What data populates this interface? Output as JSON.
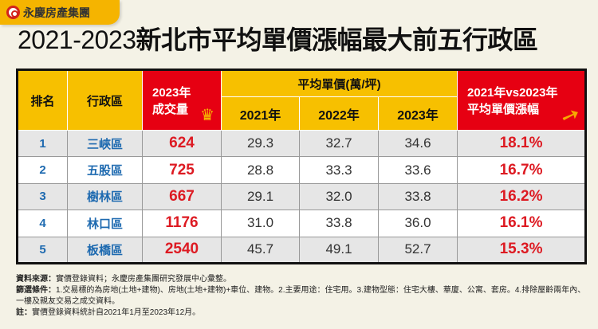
{
  "brand": {
    "name": "永慶房產集團"
  },
  "title": {
    "years": "2021-2023",
    "main": "新北市平均單價漲幅最大前五行政區"
  },
  "colors": {
    "header_yellow": "#f7c000",
    "header_red": "#e60012",
    "district_blue": "#1e6ab0",
    "value_red": "#dd1a22"
  },
  "chart_data": {
    "type": "table",
    "headers": {
      "rank": "排名",
      "district": "行政區",
      "volume": "2023年成交量",
      "volume_l1": "2023年",
      "volume_l2": "成交量",
      "price_group": "平均單價(萬/坪)",
      "y2021": "2021年",
      "y2022": "2022年",
      "y2023": "2023年",
      "growth_l1": "2021年vs2023年",
      "growth_l2": "平均單價漲幅"
    },
    "rows": [
      {
        "rank": "1",
        "district": "三峽區",
        "volume": "624",
        "p2021": "29.3",
        "p2022": "32.7",
        "p2023": "34.6",
        "growth": "18.1%"
      },
      {
        "rank": "2",
        "district": "五股區",
        "volume": "725",
        "p2021": "28.8",
        "p2022": "33.3",
        "p2023": "33.6",
        "growth": "16.7%"
      },
      {
        "rank": "3",
        "district": "樹林區",
        "volume": "667",
        "p2021": "29.1",
        "p2022": "32.0",
        "p2023": "33.8",
        "growth": "16.2%"
      },
      {
        "rank": "4",
        "district": "林口區",
        "volume": "1176",
        "p2021": "31.0",
        "p2022": "33.8",
        "p2023": "36.0",
        "growth": "16.1%"
      },
      {
        "rank": "5",
        "district": "板橋區",
        "volume": "2540",
        "p2021": "45.7",
        "p2022": "49.1",
        "p2023": "52.7",
        "growth": "15.3%"
      }
    ]
  },
  "notes": {
    "source_label": "資料來源：",
    "source": "實價登錄資料；永慶房產集團研究發展中心彙整。",
    "filter_label": "篩選條件：",
    "filter": "1.交易標的為房地(土地+建物)、房地(土地+建物)+車位、建物。2.主要用途：住宅用。3.建物型態：住宅大樓、華廈、公寓、套房。4.排除屋齡兩年內、一樓及親友交易之成交資料。",
    "note_label": "註：",
    "note": "實價登錄資料統計自2021年1月至2023年12月。"
  }
}
